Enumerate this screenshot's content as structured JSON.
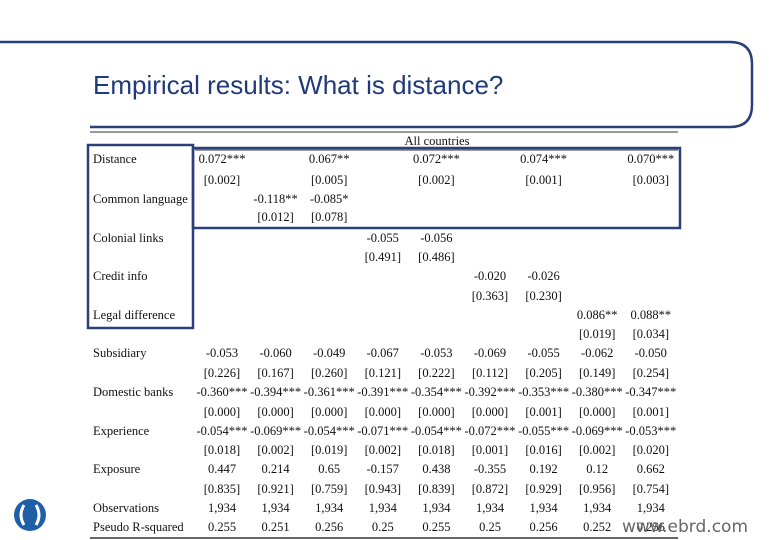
{
  "header": {
    "title": "Empirical results: What is distance?"
  },
  "table": {
    "header": "All countries",
    "rows": [
      {
        "label": "Distance",
        "coef": [
          "0.072***",
          null,
          "0.067**",
          null,
          "0.072***",
          null,
          "0.074***",
          null,
          "0.070***"
        ],
        "se": [
          "[0.002]",
          null,
          "[0.005]",
          null,
          "[0.002]",
          null,
          "[0.001]",
          null,
          "[0.003]"
        ]
      },
      {
        "label": "Common language",
        "coef": [
          null,
          "-0.118**",
          "-0.085*",
          null,
          null,
          null,
          null,
          null,
          null
        ],
        "se": [
          null,
          "[0.012]",
          "[0.078]",
          null,
          null,
          null,
          null,
          null,
          null
        ]
      },
      {
        "label": "Colonial links",
        "coef": [
          null,
          null,
          null,
          "-0.055",
          "-0.056",
          null,
          null,
          null,
          null
        ],
        "se": [
          null,
          null,
          null,
          "[0.491]",
          "[0.486]",
          null,
          null,
          null,
          null
        ]
      },
      {
        "label": "Credit info",
        "coef": [
          null,
          null,
          null,
          null,
          null,
          "-0.020",
          "-0.026",
          null,
          null
        ],
        "se": [
          null,
          null,
          null,
          null,
          null,
          "[0.363]",
          "[0.230]",
          null,
          null
        ]
      },
      {
        "label": "Legal difference",
        "coef": [
          null,
          null,
          null,
          null,
          null,
          null,
          null,
          "0.086**",
          "0.088**"
        ],
        "se": [
          null,
          null,
          null,
          null,
          null,
          null,
          null,
          "[0.019]",
          "[0.034]"
        ]
      },
      {
        "label": "Subsidiary",
        "coef": [
          "-0.053",
          "-0.060",
          "-0.049",
          "-0.067",
          "-0.053",
          "-0.069",
          "-0.055",
          "-0.062",
          "-0.050"
        ],
        "se": [
          "[0.226]",
          "[0.167]",
          "[0.260]",
          "[0.121]",
          "[0.222]",
          "[0.112]",
          "[0.205]",
          "[0.149]",
          "[0.254]"
        ]
      },
      {
        "label": "Domestic banks",
        "coef": [
          "-0.360***",
          "-0.394***",
          "-0.361***",
          "-0.391***",
          "-0.354***",
          "-0.392***",
          "-0.353***",
          "-0.380***",
          "-0.347***"
        ],
        "se": [
          "[0.000]",
          "[0.000]",
          "[0.000]",
          "[0.000]",
          "[0.000]",
          "[0.000]",
          "[0.001]",
          "[0.000]",
          "[0.001]"
        ]
      },
      {
        "label": "Experience",
        "coef": [
          "-0.054***",
          "-0.069***",
          "-0.054***",
          "-0.071***",
          "-0.054***",
          "-0.072***",
          "-0.055***",
          "-0.069***",
          "-0.053***"
        ],
        "se": [
          "[0.018]",
          "[0.002]",
          "[0.019]",
          "[0.002]",
          "[0.018]",
          "[0.001]",
          "[0.016]",
          "[0.002]",
          "[0.020]"
        ]
      },
      {
        "label": "Exposure",
        "coef": [
          "0.447",
          "0.214",
          "0.65",
          "-0.157",
          "0.438",
          "-0.355",
          "0.192",
          "0.12",
          "0.662"
        ],
        "se": [
          "[0.835]",
          "[0.921]",
          "[0.759]",
          "[0.943]",
          "[0.839]",
          "[0.872]",
          "[0.929]",
          "[0.956]",
          "[0.754]"
        ]
      },
      {
        "label": "Observations",
        "coef": [
          "1,934",
          "1,934",
          "1,934",
          "1,934",
          "1,934",
          "1,934",
          "1,934",
          "1,934",
          "1,934"
        ]
      },
      {
        "label": "Pseudo R-squared",
        "coef": [
          "0.255",
          "0.251",
          "0.256",
          "0.25",
          "0.255",
          "0.25",
          "0.256",
          "0.252",
          "0.256"
        ]
      }
    ]
  },
  "footer": {
    "url": "www.ebrd.com"
  }
}
